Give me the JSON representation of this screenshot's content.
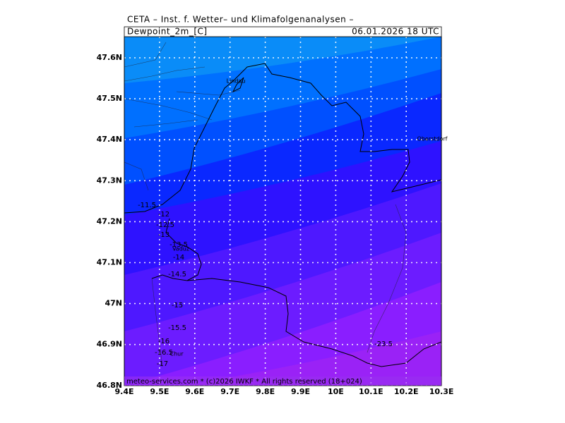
{
  "header": {
    "title": "CETA – Inst. f. Wetter– und Klimafolgenanalysen –",
    "variable": "Dewpoint_2m_[C]",
    "datetime": "06.01.2026 18 UTC"
  },
  "map": {
    "lat_labels": [
      "47.6N",
      "47.5N",
      "47.4N",
      "47.3N",
      "47.2N",
      "47.1N",
      "47N",
      "46.9N",
      "46.8N"
    ],
    "lon_labels": [
      "9.4E",
      "9.5E",
      "9.6E",
      "9.7E",
      "9.8E",
      "9.9E",
      "10E",
      "10.1E",
      "10.2E",
      "10.3E"
    ],
    "places": [
      "Lindau",
      "Vaduz",
      "Oberstdorf",
      "Chur"
    ],
    "contour_labels": [
      "-11.5",
      "-12",
      "-12.5",
      "-13",
      "-13.5",
      "-14",
      "-14.5",
      "-15",
      "-15.5",
      "-16",
      "-16.5",
      "-17",
      "-23.5"
    ]
  },
  "footer": "meteo-services.com * (c)2026 IWKF * All rights reserved (18+024)"
}
